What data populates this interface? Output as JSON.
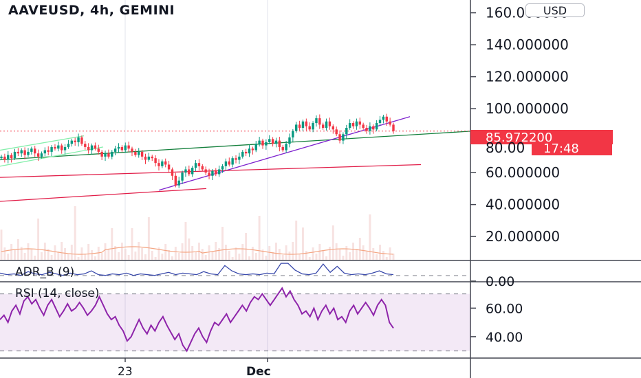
{
  "header": {
    "title": "AAVEUSD, 4h, GEMINI",
    "currency_button": "USD"
  },
  "price_tag": {
    "value": "85.972200",
    "countdown": "17:48",
    "partial_label": "80.00",
    "color": "#f23645"
  },
  "colors": {
    "up": "#089981",
    "down": "#f23645",
    "rsi": "#8e24aa",
    "adr": "#3949ab",
    "trend_purple": "#7e22ce",
    "trend_green": "#15803d",
    "channel_green": "#86efac",
    "support_red": "#e11d48",
    "volume_ma": "#f4a582"
  },
  "chart_data": [
    {
      "type": "candlestick",
      "title": "AAVEUSD, 4h, GEMINI",
      "y_axis": {
        "ticks": [
          "160.000000",
          "140.000000",
          "120.000000",
          "100.000000",
          "60.000000",
          "40.000000",
          "20.000000"
        ],
        "range": [
          5,
          168
        ]
      },
      "x_axis": {
        "ticks": [
          "23",
          "Dec"
        ]
      },
      "closes": [
        70,
        68,
        71,
        69,
        73,
        72,
        74,
        71,
        73,
        75,
        72,
        70,
        72,
        74,
        73,
        76,
        75,
        77,
        74,
        76,
        78,
        80,
        79,
        82,
        78,
        76,
        74,
        77,
        75,
        73,
        70,
        72,
        70,
        73,
        75,
        76,
        74,
        77,
        75,
        73,
        71,
        73,
        70,
        68,
        70,
        69,
        66,
        64,
        67,
        65,
        62,
        58,
        52,
        55,
        60,
        62,
        59,
        63,
        66,
        64,
        62,
        60,
        58,
        61,
        59,
        62,
        64,
        67,
        65,
        69,
        68,
        70,
        73,
        72,
        75,
        74,
        78,
        80,
        77,
        79,
        81,
        78,
        80,
        76,
        74,
        78,
        82,
        86,
        90,
        88,
        92,
        89,
        87,
        91,
        94,
        90,
        88,
        92,
        89,
        87,
        84,
        80,
        84,
        88,
        91,
        89,
        92,
        90,
        88,
        86,
        89,
        87,
        91,
        93,
        95,
        92,
        90,
        86
      ],
      "volume_ma_label": "Volume",
      "trendlines": [
        {
          "name": "upper-trend",
          "from": [
            0,
            68
          ],
          "to": [
            689,
            86
          ]
        },
        {
          "name": "rising-support",
          "from": [
            231,
            49
          ],
          "to": [
            596,
            95
          ]
        },
        {
          "name": "lower-channel",
          "from": [
            0,
            42
          ],
          "to": [
            300,
            50
          ]
        },
        {
          "name": "red-support",
          "from": [
            0,
            57
          ],
          "to": [
            612,
            65
          ]
        }
      ]
    },
    {
      "type": "line",
      "title": "ADR_B (9)",
      "series": [
        {
          "values": [
            0.6,
            0.4,
            0.5,
            0.3,
            0.8,
            0.5,
            0.4,
            0.7,
            0.5,
            0.3,
            0.6,
            0.4,
            0.5,
            0.9,
            0.4,
            0.3,
            0.5,
            0.4,
            0.6,
            0.3,
            0.5,
            0.4,
            0.3,
            0.5,
            0.7,
            0.4,
            0.6,
            0.5,
            0.4,
            0.8,
            0.5,
            0.4,
            1.6,
            0.9,
            0.5,
            0.4,
            0.5,
            0.4,
            0.6,
            0.5,
            1.9,
            1.9,
            1.0,
            0.5,
            0.4,
            0.6,
            1.8,
            0.7,
            1.5,
            0.6,
            0.4,
            0.5,
            0.4,
            0.6,
            0.9,
            0.5,
            0.4
          ]
        }
      ],
      "y_ticks": [
        "0.00"
      ]
    },
    {
      "type": "line",
      "title": "RSI (14, close)",
      "y_ticks": [
        "60.00",
        "40.00"
      ],
      "bands": [
        30,
        70
      ],
      "series": [
        {
          "values": [
            52,
            55,
            50,
            58,
            62,
            56,
            65,
            68,
            63,
            66,
            60,
            55,
            62,
            66,
            60,
            54,
            58,
            63,
            58,
            60,
            64,
            60,
            55,
            58,
            62,
            68,
            62,
            56,
            52,
            54,
            48,
            44,
            37,
            40,
            46,
            52,
            46,
            42,
            48,
            44,
            50,
            54,
            48,
            43,
            38,
            42,
            34,
            30,
            36,
            42,
            46,
            40,
            36,
            44,
            50,
            48,
            52,
            56,
            50,
            54,
            58,
            62,
            58,
            64,
            68,
            66,
            70,
            66,
            62,
            66,
            70,
            74,
            68,
            72,
            66,
            62,
            56,
            58,
            54,
            60,
            52,
            58,
            62,
            56,
            60,
            52,
            54,
            50,
            58,
            62,
            56,
            60,
            64,
            60,
            55,
            62,
            66,
            62,
            50,
            46
          ]
        }
      ]
    }
  ]
}
